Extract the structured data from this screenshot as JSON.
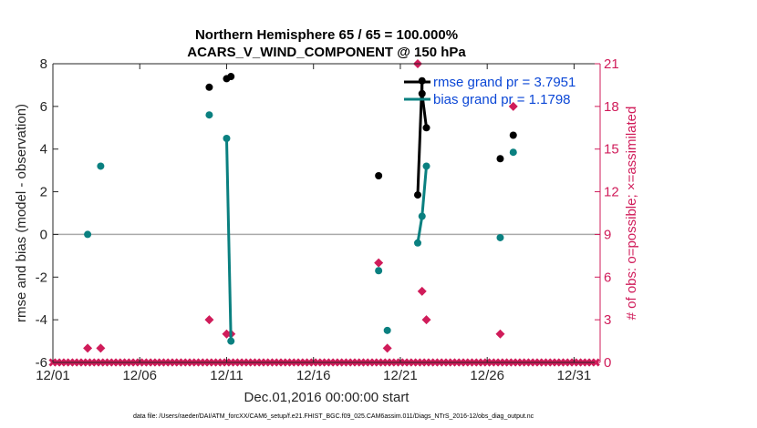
{
  "chart_data": {
    "type": "line",
    "title": "Northern Hemisphere 65 / 65 = 100.000%",
    "subtitle": "ACARS_V_WIND_COMPONENT @ 150 hPa",
    "xlabel": "Dec.01,2016 00:00:00 start",
    "ylabel": "rmse and bias (model - observation)",
    "ylabel_right": "# of obs: o=possible; ×=assimilated",
    "footnote": "data file: /Users/raeder/DAI/ATM_forcXX/CAM6_setup/f.e21.FHIST_BGC.f09_025.CAM6assim.011/Diags_NTrS_2016-12/obs_diag_output.nc",
    "xlim": [
      0,
      31.5
    ],
    "ylim": [
      -6,
      8
    ],
    "ylim_right": [
      0,
      21
    ],
    "grid": false,
    "legend_position": "top-right",
    "x_tick_values": [
      0,
      5,
      10,
      15,
      20,
      25,
      30
    ],
    "x_tick_labels": [
      "12/01",
      "12/06",
      "12/11",
      "12/16",
      "12/21",
      "12/26",
      "12/31"
    ],
    "y_ticks": [
      "-6",
      "-4",
      "-2",
      "0",
      "2",
      "4",
      "6",
      "8"
    ],
    "y_ticks_right": [
      "0",
      "3",
      "6",
      "9",
      "12",
      "15",
      "18",
      "21"
    ],
    "series": [
      {
        "name": "rmse grand pr = 3.7951",
        "color": "#000000",
        "points": [
          [
            9.0,
            6.9
          ],
          [
            10.0,
            7.3
          ],
          [
            10.25,
            7.4
          ],
          [
            18.75,
            2.75
          ],
          [
            21.0,
            1.85
          ],
          [
            21.25,
            7.2
          ],
          [
            21.25,
            6.6
          ],
          [
            21.5,
            5.0
          ],
          [
            25.75,
            3.55
          ],
          [
            26.5,
            4.65
          ]
        ]
      },
      {
        "name": "bias grand pr = 1.1798",
        "color": "#0a8080",
        "points": [
          [
            2.0,
            0.0
          ],
          [
            2.75,
            3.2
          ],
          [
            9.0,
            5.6
          ],
          [
            10.0,
            4.5
          ],
          [
            10.25,
            -5.0
          ],
          [
            18.75,
            -1.7
          ],
          [
            19.25,
            -4.5
          ],
          [
            21.0,
            -0.4
          ],
          [
            21.25,
            0.85
          ],
          [
            21.5,
            3.2
          ],
          [
            25.75,
            -0.15
          ],
          [
            26.5,
            3.85
          ]
        ]
      }
    ],
    "obs_possible": {
      "color": "#d01c5a",
      "points": [
        [
          2.0,
          1
        ],
        [
          2.75,
          1
        ],
        [
          9.0,
          3
        ],
        [
          10.0,
          2
        ],
        [
          10.25,
          2
        ],
        [
          18.75,
          7
        ],
        [
          19.25,
          1
        ],
        [
          21.0,
          21
        ],
        [
          21.25,
          5
        ],
        [
          21.5,
          3
        ],
        [
          25.75,
          2
        ],
        [
          26.5,
          18
        ]
      ]
    },
    "zero_line_color": "#aaaaaa"
  }
}
